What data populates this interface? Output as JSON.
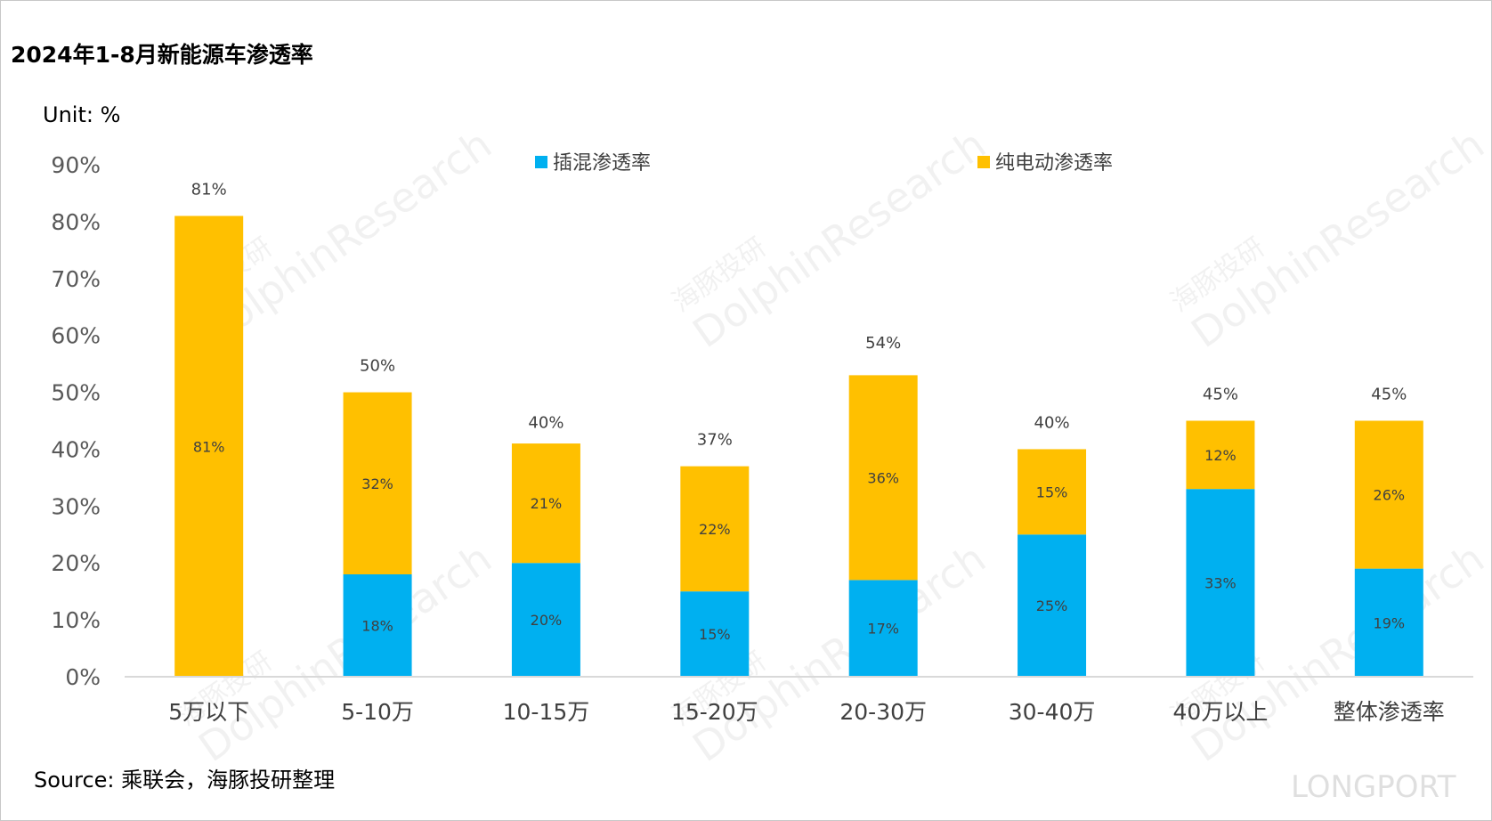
{
  "title": "2024年1-8月新能源车渗透率",
  "unit_label": "Unit: %",
  "source": "Source: 乘联会，海豚投研整理",
  "watermark": {
    "brand_cn": "海豚投研",
    "brand_en": "DolphinResearch",
    "corner": "LONGPORT"
  },
  "colors": {
    "phev": "#00B0F0",
    "bev": "#FFC000",
    "axis": "#d9d9d9"
  },
  "chart_data": {
    "type": "bar",
    "stacked": true,
    "categories": [
      "5万以下",
      "5-10万",
      "10-15万",
      "15-20万",
      "20-30万",
      "30-40万",
      "40万以上",
      "整体渗透率"
    ],
    "series": [
      {
        "name": "插混渗透率",
        "color": "#00B0F0",
        "values": [
          0,
          18,
          20,
          15,
          17,
          25,
          33,
          19
        ],
        "labels": [
          "",
          "18%",
          "20%",
          "15%",
          "17%",
          "25%",
          "33%",
          "19%"
        ]
      },
      {
        "name": "纯电动渗透率",
        "color": "#FFC000",
        "values": [
          81,
          32,
          21,
          22,
          36,
          15,
          12,
          26
        ],
        "labels": [
          "81%",
          "32%",
          "21%",
          "22%",
          "36%",
          "15%",
          "12%",
          "26%"
        ]
      }
    ],
    "totals": [
      81,
      50,
      40,
      37,
      54,
      40,
      45,
      45
    ],
    "total_labels": [
      "81%",
      "50%",
      "40%",
      "37%",
      "54%",
      "40%",
      "45%",
      "45%"
    ],
    "y_ticks": [
      "0%",
      "10%",
      "20%",
      "30%",
      "40%",
      "50%",
      "60%",
      "70%",
      "80%",
      "90%"
    ],
    "ylim": [
      0,
      90
    ],
    "grid": false,
    "legend_position": "top"
  }
}
